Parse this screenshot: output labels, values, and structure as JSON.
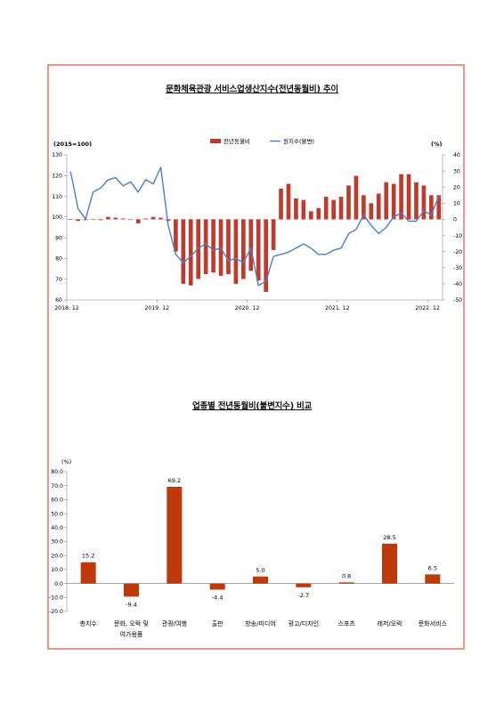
{
  "chart_data": [
    {
      "type": "bar+line",
      "title": "문화체육관광 서비스업생산지수(전년동월비) 추이",
      "left_unit": "(2015=100)",
      "right_unit": "(%)",
      "legend": [
        "전년동월비",
        "원지수(불변)"
      ],
      "legend_position": "top-center",
      "y_left_lim": [
        60,
        130
      ],
      "y_left_ticks": [
        "130",
        "120",
        "110",
        "100",
        "90",
        "80",
        "70",
        "60"
      ],
      "y_right_lim": [
        -50,
        40
      ],
      "y_right_ticks": [
        "40",
        "30",
        "20",
        "10",
        "0",
        "-10",
        "-20",
        "-30",
        "-40",
        "-50"
      ],
      "x_tick_labels": [
        "2018. 12",
        "2019. 12",
        "2020. 12",
        "2021. 12",
        "2022. 12"
      ],
      "x_tick_index": [
        0,
        12,
        24,
        36,
        48
      ],
      "series": [
        {
          "name": "전년동월비",
          "axis": "right",
          "kind": "bar",
          "color": "#c0392b",
          "values": [
            0.2,
            -1,
            -0.5,
            0,
            -0.5,
            1.5,
            1,
            0.5,
            -0.3,
            -2.5,
            0.5,
            1.5,
            1,
            -1,
            -20,
            -40,
            -41,
            -37,
            -34,
            -33,
            -35,
            -34,
            -40,
            -37,
            -32,
            -38,
            -45,
            -19,
            19,
            22,
            13,
            12,
            5,
            7,
            14,
            12,
            14,
            21,
            27,
            15,
            10,
            16,
            23,
            22,
            28,
            28,
            23,
            21,
            15,
            15
          ]
        },
        {
          "name": "원지수(불변)",
          "axis": "left",
          "kind": "line",
          "color": "#4a80c2",
          "values": [
            122,
            104,
            99,
            112,
            114,
            118,
            119,
            115,
            117,
            112,
            118,
            116,
            124,
            96,
            82,
            78,
            81,
            85,
            87,
            84,
            85,
            79,
            80,
            78,
            85,
            67,
            69,
            81,
            82,
            83,
            85,
            87,
            85,
            82,
            82,
            84,
            85,
            92,
            94,
            101,
            96,
            92,
            95,
            100,
            102,
            98,
            98,
            103,
            101,
            110
          ]
        }
      ]
    },
    {
      "type": "bar",
      "title": "업종별 전년동월비(불변지수) 비교",
      "ylabel": "(%)",
      "ylim": [
        -20,
        80
      ],
      "y_ticks": [
        "80.0",
        "70.0",
        "60.0",
        "50.0",
        "40.0",
        "30.0",
        "20.0",
        "10.0",
        "0.0",
        "-10.0",
        "-20.0"
      ],
      "categories": [
        "총지수",
        "문화, 오락 및|여가용품",
        "관광/여행",
        "출판",
        "방송/미디어",
        "광고/디자인",
        "스포츠",
        "레저/오락",
        "문화서비스"
      ],
      "values": [
        15.2,
        -9.4,
        69.2,
        -4.4,
        5.0,
        -2.7,
        0.8,
        28.5,
        6.5
      ],
      "value_labels": [
        "15.2",
        "-9.4",
        "69.2",
        "-4.4",
        "5.0",
        "-2.7",
        "0.8",
        "28.5",
        "6.5"
      ],
      "bar_color": "#c0390b"
    }
  ]
}
